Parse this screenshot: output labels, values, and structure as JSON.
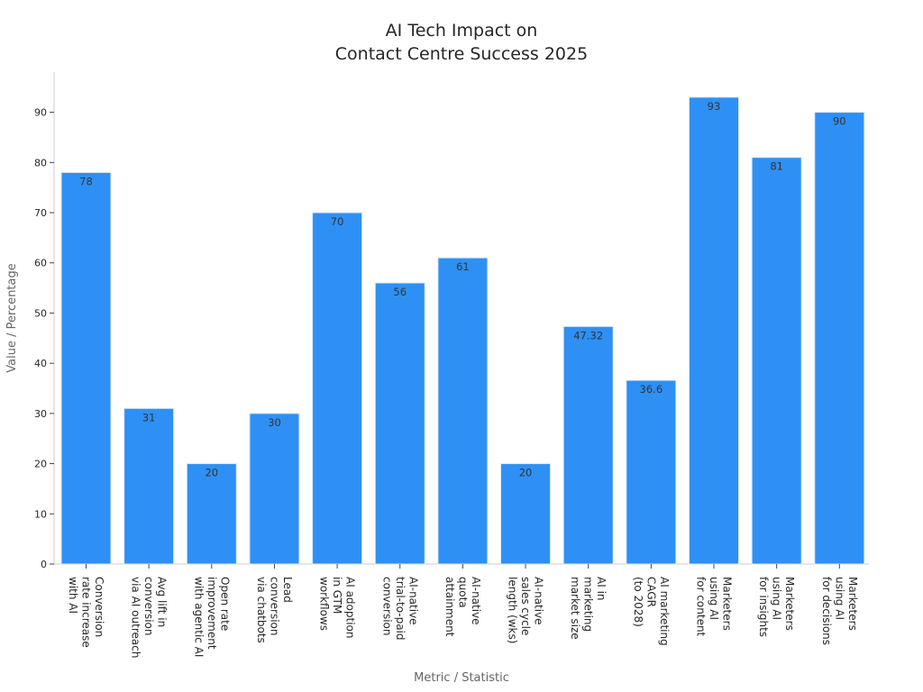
{
  "chart_data": {
    "type": "bar",
    "title": [
      "AI Tech Impact on",
      "Contact Centre Success 2025"
    ],
    "xlabel": "Metric / Statistic",
    "ylabel": "Value / Percentage",
    "ylim": [
      0,
      98
    ],
    "yticks": [
      0,
      10,
      20,
      30,
      40,
      50,
      60,
      70,
      80,
      90
    ],
    "grid": false,
    "bar_color": "#2e90f5",
    "bar_edge_color": "#dbe9fb",
    "categories": [
      [
        "Conversion",
        "rate increase",
        "with AI"
      ],
      [
        "Avg lift in",
        "conversion",
        "via AI outreach"
      ],
      [
        "Open rate",
        "improvement",
        "with agentic AI"
      ],
      [
        "Lead",
        "conversion",
        "via chatbots"
      ],
      [
        "AI adoption",
        "in GTM",
        "workflows"
      ],
      [
        "AI-native",
        "trial-to-paid",
        "conversion"
      ],
      [
        "AI-native",
        "quota",
        "attainment"
      ],
      [
        "AI-native",
        "sales cycle",
        "length (wks)"
      ],
      [
        "AI in",
        "marketing",
        "market size"
      ],
      [
        "AI marketing",
        "CAGR",
        "(to 2028)"
      ],
      [
        "Marketers",
        "using AI",
        "for content"
      ],
      [
        "Marketers",
        "using AI",
        "for insights"
      ],
      [
        "Marketers",
        "using AI",
        "for decisions"
      ]
    ],
    "values": [
      78,
      31,
      20,
      30,
      70,
      56,
      61,
      20,
      47.32,
      36.6,
      93,
      81,
      90
    ],
    "value_labels": [
      "78",
      "31",
      "20",
      "30",
      "70",
      "56",
      "61",
      "20",
      "47.32",
      "36.6",
      "93",
      "81",
      "90"
    ]
  }
}
